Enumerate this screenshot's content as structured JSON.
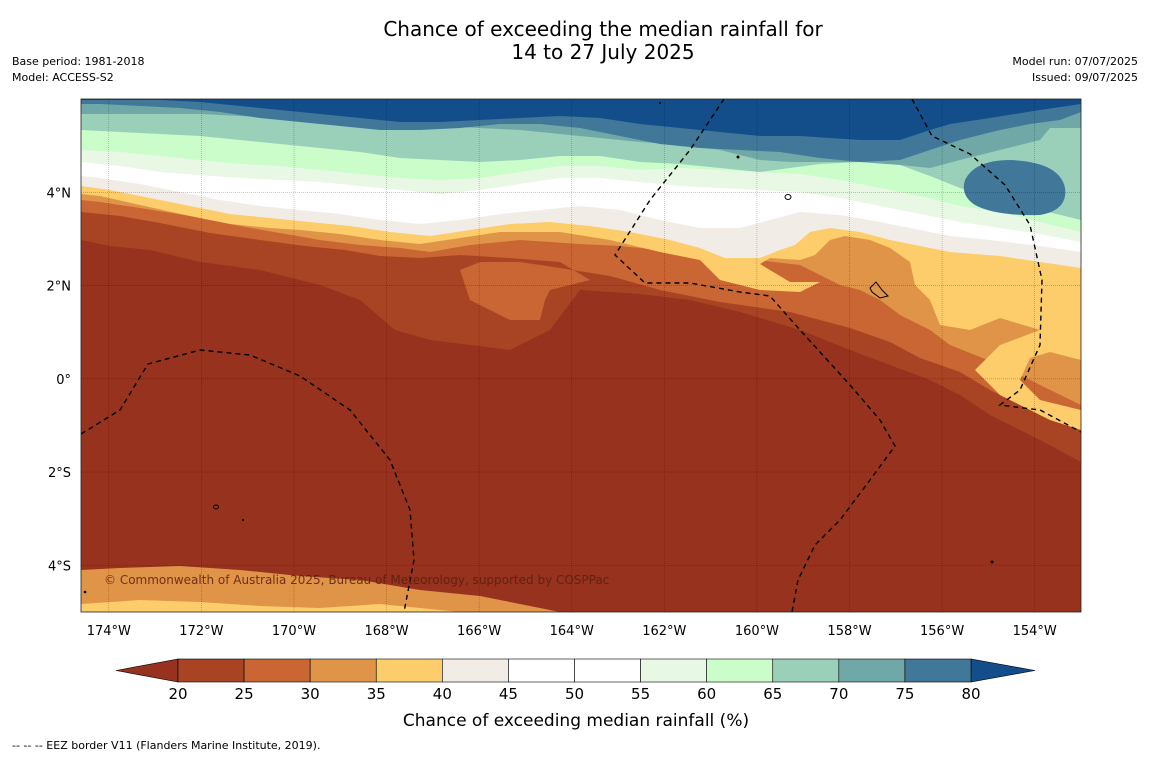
{
  "title_line1": "Chance of exceeding the median rainfall for",
  "title_line2": "14 to 27 July 2025",
  "meta_left": {
    "base_period": "Base period: 1981-2018",
    "model": "Model: ACCESS-S2"
  },
  "meta_right": {
    "model_run": "Model run: 07/07/2025",
    "issued": "Issued: 09/07/2025"
  },
  "map": {
    "lon_labels": [
      "174°W",
      "172°W",
      "170°W",
      "168°W",
      "166°W",
      "164°W",
      "162°W",
      "160°W",
      "158°W",
      "156°W",
      "154°W"
    ],
    "lat_labels": [
      "4°N",
      "2°N",
      "0°",
      "2°S",
      "4°S"
    ],
    "lon_values": [
      -174,
      -172,
      -170,
      -168,
      -166,
      -164,
      -162,
      -160,
      -158,
      -156,
      -154
    ],
    "lat_values": [
      4,
      2,
      0,
      -2,
      -4
    ],
    "lon_range": [
      -174.6,
      -153
    ],
    "lat_range": [
      -5,
      6
    ],
    "copyright": "© Commonwealth of Australia 2025, Bureau of Meteorology, supported by COSPPac"
  },
  "colorbar": {
    "title": "Chance of exceeding median rainfall (%)",
    "ticks": [
      "20",
      "25",
      "30",
      "35",
      "40",
      "45",
      "50",
      "55",
      "60",
      "65",
      "70",
      "75",
      "80"
    ],
    "colors": [
      "#a84424",
      "#c96633",
      "#e09448",
      "#fdcc6b",
      "#f1ede6",
      "#ffffff",
      "#ffffff",
      "#e9f7e5",
      "#cbfdcb",
      "#9ad0b9",
      "#70a8a8",
      "#41789a"
    ],
    "under_color": "#96321e",
    "over_color": "#134e8a"
  },
  "footnote": "--  --  -- EEZ border V11 (Flanders Marine Institute, 2019)."
}
